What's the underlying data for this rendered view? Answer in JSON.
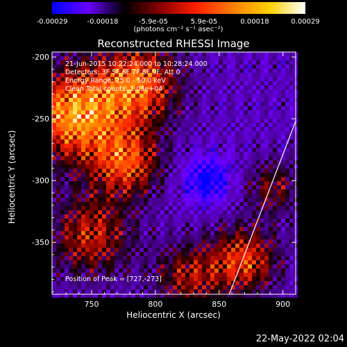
{
  "colorbar": {
    "ticks": [
      "-0.00029",
      "-0.00018",
      "-5.9e-05",
      "5.9e-05",
      "0.00018",
      "0.00029"
    ],
    "units": "(photons cm⁻² s⁻¹ asec⁻²)",
    "colors": [
      "#0000ff",
      "#6a00ff",
      "#000000",
      "#8a0000",
      "#ff2000",
      "#ff8000",
      "#ffd000",
      "#ffffff"
    ]
  },
  "header": {
    "title": "Reconstructed RHESSI Image"
  },
  "annotations": {
    "line1": "21-Jun-2015 10:22:24.000 to 10:28:24.000",
    "line2": "Detectors: 3F 5F 6F 7F 8F 9F, Att 0",
    "line3": "Energy Range: 25.0 - 50.0 keV",
    "line4": "Clean     Total counts: 1.03e+04",
    "peak": "Position of Peak = [727,-273]"
  },
  "footer": {
    "timestamp": "22-May-2022 02:04"
  },
  "chart_data": {
    "type": "heatmap",
    "title": "Reconstructed RHESSI Image",
    "xlabel": "Heliocentric X (arcsec)",
    "ylabel": "Heliocentric Y (arcsec)",
    "xlim": [
      719,
      910
    ],
    "ylim": [
      -392,
      -196
    ],
    "x_ticks": [
      750,
      800,
      850,
      900
    ],
    "y_ticks": [
      -200,
      -250,
      -300,
      -350
    ],
    "x_tick_labels": [
      "750",
      "800",
      "850",
      "900"
    ],
    "y_tick_labels": [
      "-200",
      "-250",
      "-300",
      "-350"
    ],
    "colorbar_range": [
      -0.00029,
      0.00029
    ],
    "limb_line": [
      [
        858,
        -392
      ],
      [
        910,
        -252
      ]
    ],
    "peak_position": [
      727,
      -273
    ],
    "grid": false
  }
}
